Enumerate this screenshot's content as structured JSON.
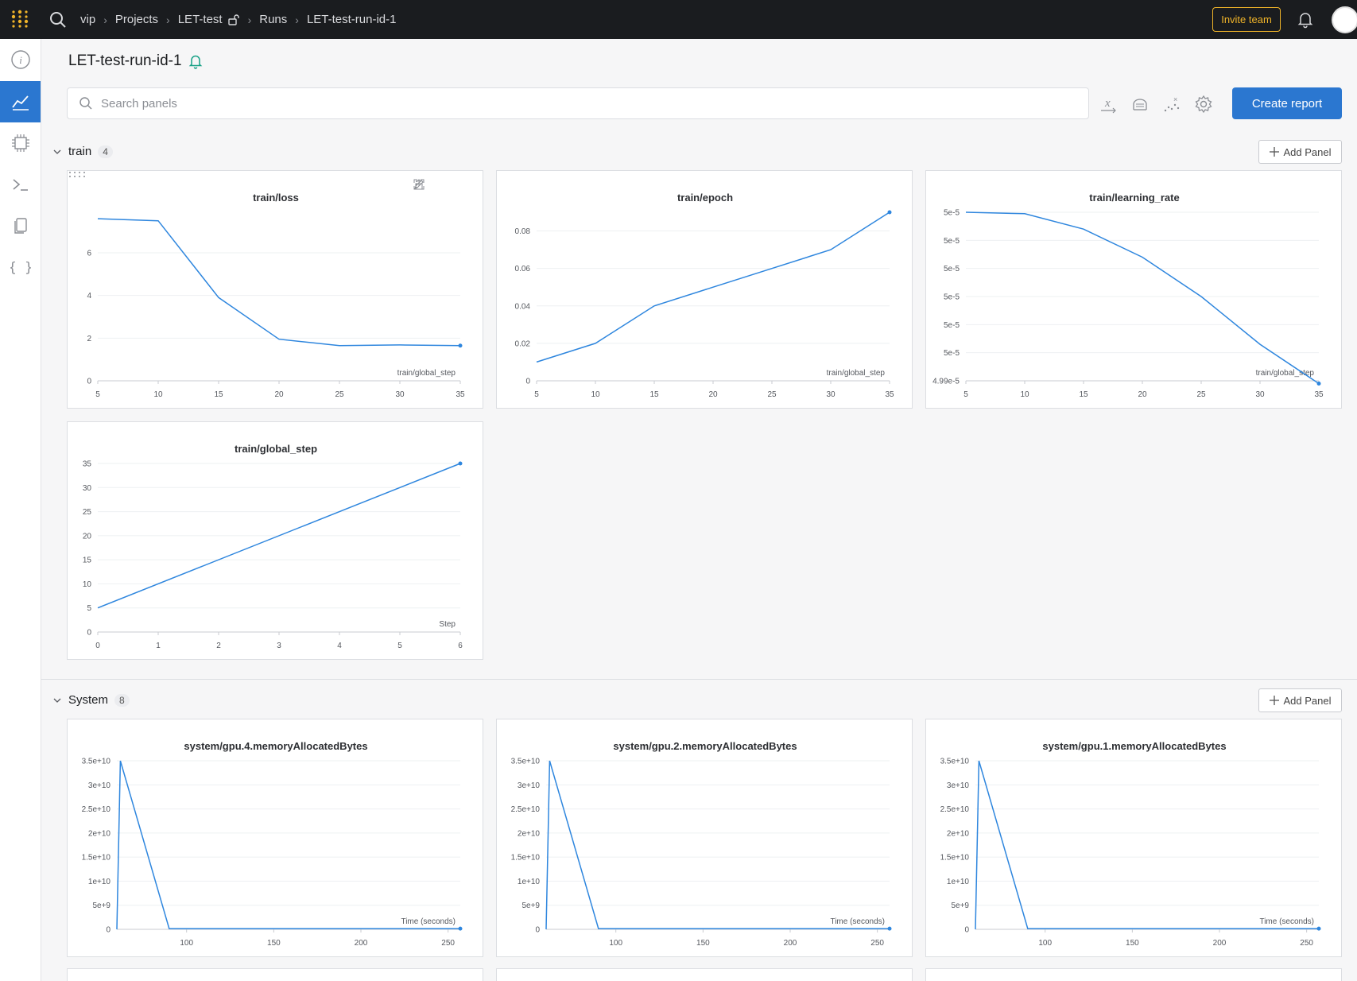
{
  "topbar": {
    "breadcrumbs": [
      "vip",
      "Projects",
      "LET-test",
      "Runs",
      "LET-test-run-id-1"
    ],
    "invite_label": "Invite team"
  },
  "sidebar": {
    "items": [
      {
        "icon": "info-icon",
        "active": false
      },
      {
        "icon": "chart-icon",
        "active": true
      },
      {
        "icon": "chip-icon",
        "active": false
      },
      {
        "icon": "terminal-icon",
        "active": false
      },
      {
        "icon": "files-icon",
        "active": false
      },
      {
        "icon": "code-braces-icon",
        "active": false
      }
    ]
  },
  "run": {
    "title": "LET-test-run-id-1"
  },
  "search": {
    "placeholder": "Search panels"
  },
  "toolbar": {
    "create_report_label": "Create report"
  },
  "sections": [
    {
      "name": "train",
      "count": "4",
      "add_label": "Add Panel"
    },
    {
      "name": "System",
      "count": "8",
      "add_label": "Add Panel"
    }
  ],
  "colors": {
    "accent": "#2b77d0",
    "series": "#2e86de",
    "invite": "#f0b429",
    "topbar": "#1a1c1f"
  },
  "chart_data": [
    {
      "type": "line",
      "title": "train/loss",
      "xlabel": "train/global_step",
      "x": [
        5,
        10,
        15,
        20,
        25,
        30,
        35
      ],
      "y": [
        7.6,
        7.5,
        3.9,
        1.95,
        1.65,
        1.68,
        1.65
      ],
      "xticks": [
        5,
        10,
        15,
        20,
        25,
        30,
        35
      ],
      "xtick_labels": [
        "5",
        "10",
        "15",
        "20",
        "25",
        "30",
        "35"
      ],
      "yticks": [
        0,
        2,
        4,
        6
      ],
      "ytick_labels": [
        "0",
        "2",
        "4",
        "6"
      ],
      "xlim": [
        5,
        35
      ],
      "ylim": [
        0,
        7.9
      ]
    },
    {
      "type": "line",
      "title": "train/epoch",
      "xlabel": "train/global_step",
      "x": [
        5,
        10,
        15,
        20,
        25,
        30,
        35
      ],
      "y": [
        0.01,
        0.02,
        0.04,
        0.05,
        0.06,
        0.07,
        0.09
      ],
      "xticks": [
        5,
        10,
        15,
        20,
        25,
        30,
        35
      ],
      "xtick_labels": [
        "5",
        "10",
        "15",
        "20",
        "25",
        "30",
        "35"
      ],
      "yticks": [
        0,
        0.02,
        0.04,
        0.06,
        0.08
      ],
      "ytick_labels": [
        "0",
        "0.02",
        "0.04",
        "0.06",
        "0.08"
      ],
      "xlim": [
        5,
        35
      ],
      "ylim": [
        0,
        0.09
      ]
    },
    {
      "type": "line",
      "title": "train/learning_rate",
      "xlabel": "train/global_step",
      "x": [
        5,
        10,
        15,
        20,
        25,
        30,
        35
      ],
      "y": [
        6.0,
        5.95,
        5.4,
        4.4,
        3.0,
        1.3,
        -0.1
      ],
      "xticks": [
        5,
        10,
        15,
        20,
        25,
        30,
        35
      ],
      "xtick_labels": [
        "5",
        "10",
        "15",
        "20",
        "25",
        "30",
        "35"
      ],
      "yticks": [
        0,
        1,
        2,
        3,
        4,
        5,
        6
      ],
      "ytick_labels": [
        "4.99e-5",
        "5e-5",
        "5e-5",
        "5e-5",
        "5e-5",
        "5e-5",
        "5e-5"
      ],
      "xlim": [
        5,
        35
      ],
      "ylim": [
        0,
        6
      ]
    },
    {
      "type": "line",
      "title": "train/global_step",
      "xlabel": "Step",
      "x": [
        0,
        6
      ],
      "y": [
        5,
        35
      ],
      "xticks": [
        0,
        1,
        2,
        3,
        4,
        5,
        6
      ],
      "xtick_labels": [
        "0",
        "1",
        "2",
        "3",
        "4",
        "5",
        "6"
      ],
      "yticks": [
        0,
        5,
        10,
        15,
        20,
        25,
        30,
        35
      ],
      "ytick_labels": [
        "0",
        "5",
        "10",
        "15",
        "20",
        "25",
        "30",
        "35"
      ],
      "xlim": [
        0,
        6
      ],
      "ylim": [
        0,
        35
      ]
    },
    {
      "type": "line",
      "title": "system/gpu.4.memoryAllocatedBytes",
      "xlabel": "Time (seconds)",
      "x": [
        60,
        62,
        90,
        257
      ],
      "y": [
        0,
        35000000000.0,
        150000000.0,
        150000000.0
      ],
      "xticks": [
        100,
        150,
        200,
        250
      ],
      "xtick_labels": [
        "100",
        "150",
        "200",
        "250"
      ],
      "yticks": [
        0,
        5000000000.0,
        10000000000.0,
        15000000000.0,
        20000000000.0,
        25000000000.0,
        30000000000.0,
        35000000000.0
      ],
      "ytick_labels": [
        "0",
        "5e+9",
        "1e+10",
        "1.5e+10",
        "2e+10",
        "2.5e+10",
        "3e+10",
        "3.5e+10"
      ],
      "xlim": [
        60,
        257
      ],
      "ylim": [
        0,
        35000000000.0
      ]
    },
    {
      "type": "line",
      "title": "system/gpu.2.memoryAllocatedBytes",
      "xlabel": "Time (seconds)",
      "x": [
        60,
        62,
        90,
        257
      ],
      "y": [
        0,
        35000000000.0,
        150000000.0,
        150000000.0
      ],
      "xticks": [
        100,
        150,
        200,
        250
      ],
      "xtick_labels": [
        "100",
        "150",
        "200",
        "250"
      ],
      "yticks": [
        0,
        5000000000.0,
        10000000000.0,
        15000000000.0,
        20000000000.0,
        25000000000.0,
        30000000000.0,
        35000000000.0
      ],
      "ytick_labels": [
        "0",
        "5e+9",
        "1e+10",
        "1.5e+10",
        "2e+10",
        "2.5e+10",
        "3e+10",
        "3.5e+10"
      ],
      "xlim": [
        60,
        257
      ],
      "ylim": [
        0,
        35000000000.0
      ]
    },
    {
      "type": "line",
      "title": "system/gpu.1.memoryAllocatedBytes",
      "xlabel": "Time (seconds)",
      "x": [
        60,
        62,
        90,
        257
      ],
      "y": [
        0,
        35000000000.0,
        150000000.0,
        150000000.0
      ],
      "xticks": [
        100,
        150,
        200,
        250
      ],
      "xtick_labels": [
        "100",
        "150",
        "200",
        "250"
      ],
      "yticks": [
        0,
        5000000000.0,
        10000000000.0,
        15000000000.0,
        20000000000.0,
        25000000000.0,
        30000000000.0,
        35000000000.0
      ],
      "ytick_labels": [
        "0",
        "5e+9",
        "1e+10",
        "1.5e+10",
        "2e+10",
        "2.5e+10",
        "3e+10",
        "3.5e+10"
      ],
      "xlim": [
        60,
        257
      ],
      "ylim": [
        0,
        35000000000.0
      ]
    }
  ]
}
